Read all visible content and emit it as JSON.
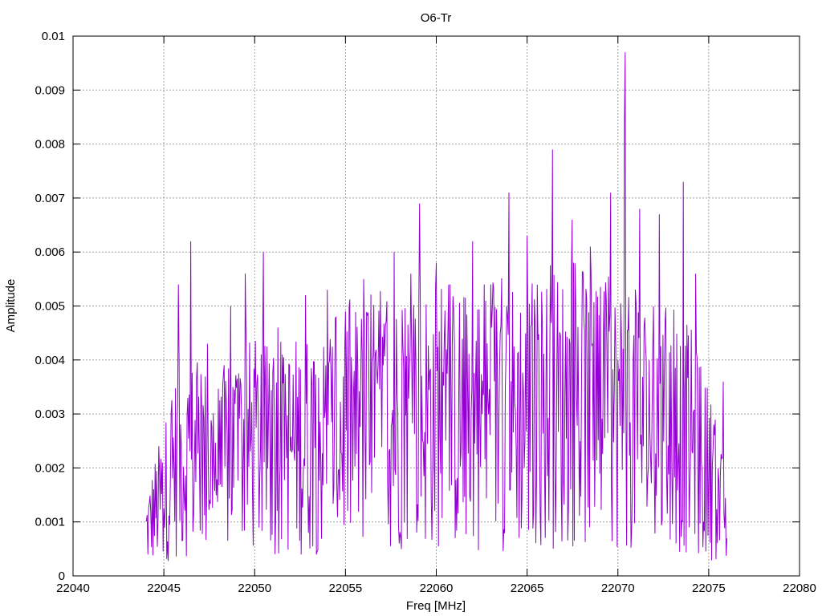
{
  "chart_data": {
    "type": "line",
    "title": "O6-Tr",
    "xlabel": "Freq [MHz]",
    "ylabel": "Amplitude",
    "xlim": [
      22040,
      22080
    ],
    "ylim": [
      0,
      0.01
    ],
    "grid": true,
    "x_ticks": [
      "22040",
      "22045",
      "22050",
      "22055",
      "22060",
      "22065",
      "22070",
      "22075",
      "22080"
    ],
    "y_ticks": [
      "0",
      "0.001",
      "0.002",
      "0.003",
      "0.004",
      "0.005",
      "0.006",
      "0.007",
      "0.008",
      "0.009",
      "0.01"
    ],
    "series": [
      {
        "color": "#9400d3",
        "x_start": 22044.0,
        "x_step": 0.04,
        "points_described": "dense noisy spectrum, 801 samples from 22044.0 to 22076.0 MHz",
        "envelope": [
          [
            22044.0,
            0.0008
          ],
          [
            22044.5,
            0.0012
          ],
          [
            22045.0,
            0.0015
          ],
          [
            22045.5,
            0.002
          ],
          [
            22046.0,
            0.0022
          ],
          [
            22047.0,
            0.0022
          ],
          [
            22048.0,
            0.002
          ],
          [
            22049.0,
            0.0024
          ],
          [
            22050.0,
            0.0024
          ],
          [
            22051.0,
            0.0023
          ],
          [
            22052.0,
            0.0024
          ],
          [
            22053.0,
            0.0025
          ],
          [
            22054.0,
            0.0025
          ],
          [
            22055.0,
            0.0027
          ],
          [
            22056.0,
            0.0028
          ],
          [
            22057.0,
            0.0028
          ],
          [
            22058.0,
            0.0029
          ],
          [
            22059.0,
            0.003
          ],
          [
            22060.0,
            0.003
          ],
          [
            22061.0,
            0.0029
          ],
          [
            22062.0,
            0.0029
          ],
          [
            22063.0,
            0.0029
          ],
          [
            22064.0,
            0.003
          ],
          [
            22065.0,
            0.003
          ],
          [
            22066.0,
            0.0031
          ],
          [
            22067.0,
            0.0031
          ],
          [
            22068.0,
            0.0031
          ],
          [
            22069.0,
            0.003
          ],
          [
            22070.0,
            0.003
          ],
          [
            22071.0,
            0.0029
          ],
          [
            22072.0,
            0.0028
          ],
          [
            22073.0,
            0.0027
          ],
          [
            22074.0,
            0.0025
          ],
          [
            22075.0,
            0.0019
          ],
          [
            22076.0,
            0.001
          ]
        ],
        "peaks": [
          [
            22044.9,
            0.0021
          ],
          [
            22045.8,
            0.0054
          ],
          [
            22046.5,
            0.0062
          ],
          [
            22047.4,
            0.0043
          ],
          [
            22048.7,
            0.005
          ],
          [
            22049.5,
            0.0056
          ],
          [
            22050.5,
            0.006
          ],
          [
            22051.3,
            0.0046
          ],
          [
            22052.8,
            0.0052
          ],
          [
            22054.0,
            0.0053
          ],
          [
            22055.0,
            0.0049
          ],
          [
            22056.0,
            0.0055
          ],
          [
            22057.7,
            0.006
          ],
          [
            22058.6,
            0.0056
          ],
          [
            22059.1,
            0.0069
          ],
          [
            22060.0,
            0.0058
          ],
          [
            22062.0,
            0.0062
          ],
          [
            22063.0,
            0.0054
          ],
          [
            22064.0,
            0.0071
          ],
          [
            22065.0,
            0.0063
          ],
          [
            22066.4,
            0.0079
          ],
          [
            22067.5,
            0.0066
          ],
          [
            22068.5,
            0.0061
          ],
          [
            22069.6,
            0.0071
          ],
          [
            22070.4,
            0.0097
          ],
          [
            22070.35,
            0.0084
          ],
          [
            22071.2,
            0.0068
          ],
          [
            22072.3,
            0.0067
          ],
          [
            22073.6,
            0.0073
          ],
          [
            22074.3,
            0.0056
          ],
          [
            22075.8,
            0.0036
          ]
        ]
      }
    ]
  }
}
